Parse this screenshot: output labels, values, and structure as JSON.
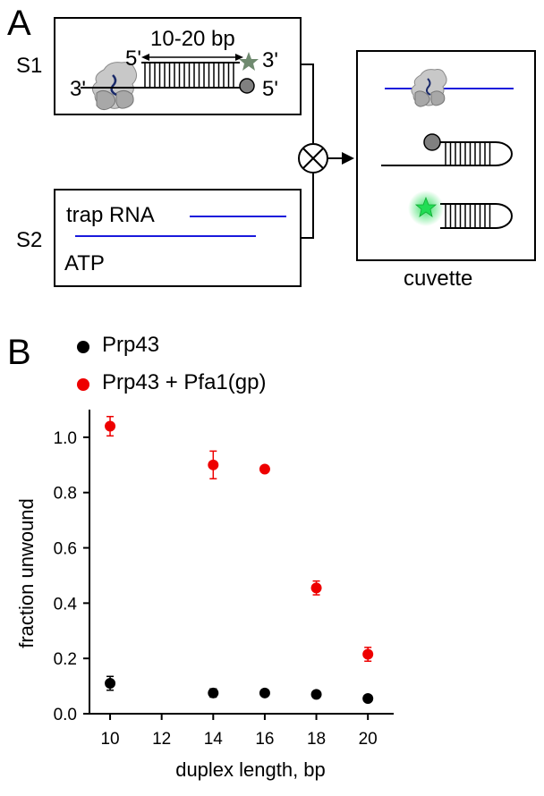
{
  "panel_a": {
    "letter": "A",
    "s1_label": "S1",
    "s2_label": "S2",
    "length_label": "10-20 bp",
    "end_5_top": "5'",
    "end_3_top": "3'",
    "end_3_left": "3'",
    "end_5_right": "5'",
    "trap_label": "trap RNA",
    "atp_label": "ATP",
    "cuvette_label": "cuvette",
    "colors": {
      "rna_line": "#1a1adc",
      "quencher": "#808080",
      "fluor_dim": "#6f8a6f",
      "fluor_bright": "#22dd55"
    }
  },
  "panel_b": {
    "letter": "B",
    "legend": [
      {
        "name": "Prp43",
        "color": "#000000"
      },
      {
        "name": "Prp43 + Pfa1(gp)",
        "color": "#ee0000"
      }
    ]
  },
  "chart_data": {
    "type": "scatter",
    "xlabel": "duplex length, bp",
    "ylabel": "fraction unwound",
    "xlim": [
      9.2,
      21.0
    ],
    "ylim": [
      0.0,
      1.1
    ],
    "xticks": [
      10,
      12,
      14,
      16,
      18,
      20
    ],
    "yticks": [
      0.0,
      0.2,
      0.4,
      0.6,
      0.8,
      1.0
    ],
    "ytick_labels": [
      "0.0",
      "0.2",
      "0.4",
      "0.6",
      "0.8",
      "1.0"
    ],
    "grid": false,
    "legend_position": "top-left",
    "series": [
      {
        "name": "Prp43",
        "color": "#000000",
        "x": [
          10,
          14,
          16,
          18,
          20
        ],
        "y": [
          0.11,
          0.075,
          0.075,
          0.07,
          0.055
        ],
        "err": [
          0.025,
          0.015,
          0.01,
          0.01,
          0.01
        ]
      },
      {
        "name": "Prp43 + Pfa1(gp)",
        "color": "#ee0000",
        "x": [
          10,
          14,
          16,
          18,
          20
        ],
        "y": [
          1.04,
          0.9,
          0.885,
          0.455,
          0.215
        ],
        "err": [
          0.035,
          0.05,
          0.01,
          0.025,
          0.025
        ]
      }
    ]
  }
}
